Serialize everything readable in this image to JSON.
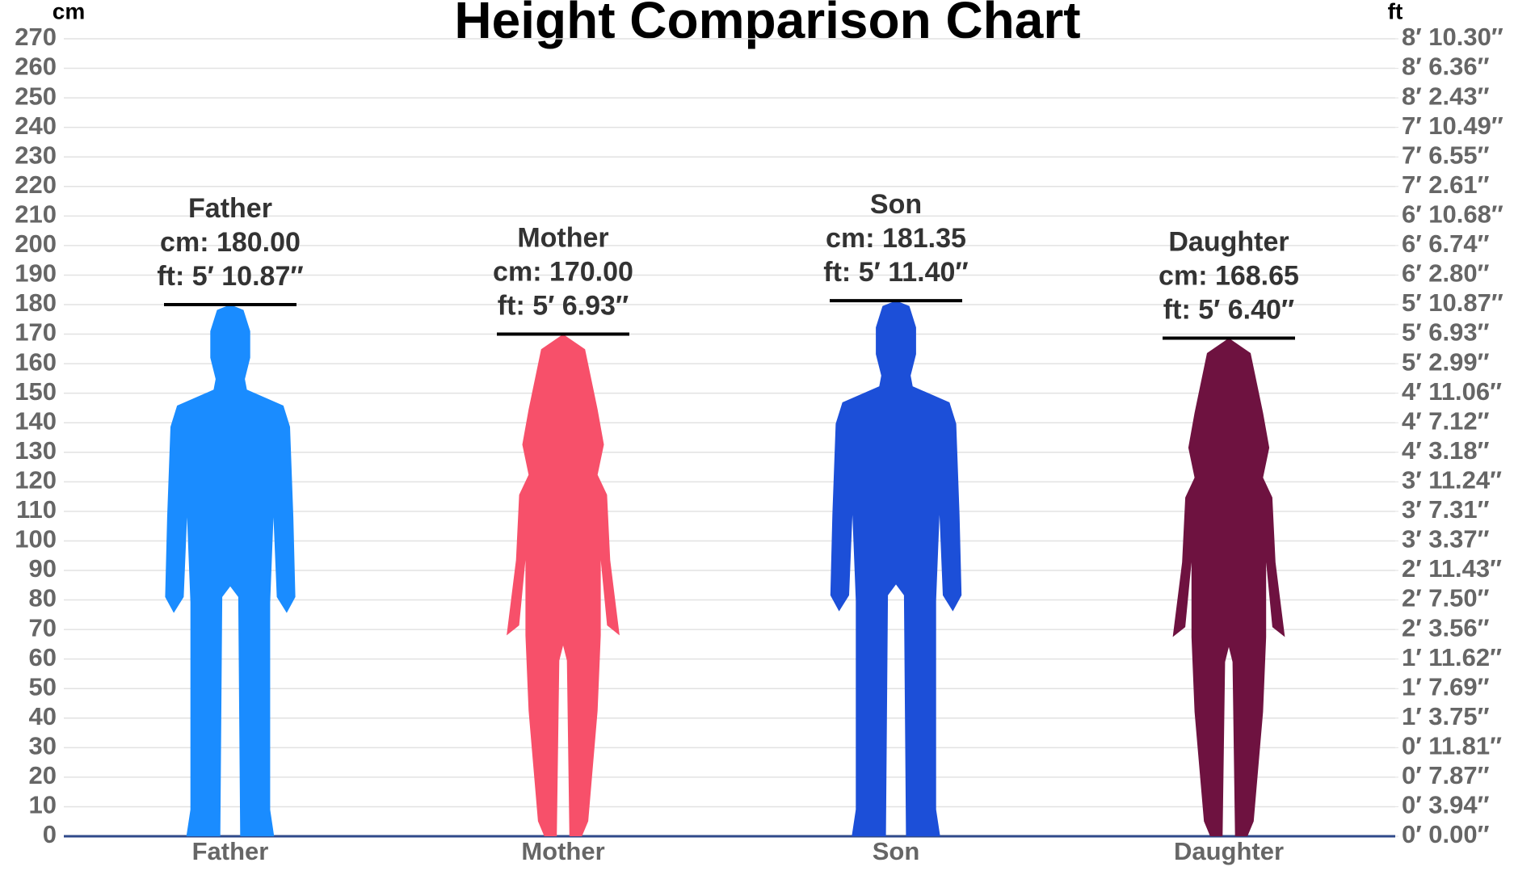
{
  "chart_data": {
    "type": "height-figures",
    "title": "Height Comparison Chart",
    "y_label": "cm",
    "y2_label": "ft",
    "categories": [
      "Father",
      "Mother",
      "Son",
      "Daughter"
    ],
    "values": [
      180,
      170,
      181.35,
      168.65
    ],
    "value_labels": [
      "cm: 180.00",
      "cm: 170.00",
      "cm: 181.35",
      "cm: 168.65"
    ],
    "ft_labels": [
      "ft: 5′ 10.87″",
      "ft: 5′ 6.93″",
      "ft: 5′ 11.40″",
      "ft: 5′ 6.40″"
    ],
    "colors": [
      "#1a8cff",
      "#f7506a",
      "#1c4fd8",
      "#6e1240"
    ],
    "figures": [
      "male",
      "female",
      "male",
      "female"
    ],
    "ylim": [
      0,
      270
    ],
    "yticks": [
      0,
      10,
      20,
      30,
      40,
      50,
      60,
      70,
      80,
      90,
      100,
      110,
      120,
      130,
      140,
      150,
      160,
      170,
      180,
      190,
      200,
      210,
      220,
      230,
      240,
      250,
      260,
      270
    ],
    "y2lim": [
      0,
      8.8583
    ],
    "y2ticks": [
      {
        "value": 0,
        "label": "0′ 0.00″"
      },
      {
        "value": 0.3281,
        "label": "0′ 3.94″"
      },
      {
        "value": 0.6562,
        "label": "0′ 7.87″"
      },
      {
        "value": 0.9843,
        "label": "0′ 11.81″"
      },
      {
        "value": 1.3123,
        "label": "1′ 3.75″"
      },
      {
        "value": 1.6404,
        "label": "1′ 7.69″"
      },
      {
        "value": 1.9685,
        "label": "1′ 11.62″"
      },
      {
        "value": 2.2966,
        "label": "2′ 3.56″"
      },
      {
        "value": 2.6247,
        "label": "2′ 7.50″"
      },
      {
        "value": 2.9528,
        "label": "2′ 11.43″"
      },
      {
        "value": 3.2808,
        "label": "3′ 3.37″"
      },
      {
        "value": 3.6089,
        "label": "3′ 7.31″"
      },
      {
        "value": 3.937,
        "label": "3′ 11.24″"
      },
      {
        "value": 4.2651,
        "label": "4′ 3.18″"
      },
      {
        "value": 4.5932,
        "label": "4′ 7.12″"
      },
      {
        "value": 4.9213,
        "label": "4′ 11.06″"
      },
      {
        "value": 5.2493,
        "label": "5′ 2.99″"
      },
      {
        "value": 5.5774,
        "label": "5′ 6.93″"
      },
      {
        "value": 5.9055,
        "label": "5′ 10.87″"
      },
      {
        "value": 6.2336,
        "label": "6′ 2.80″"
      },
      {
        "value": 6.5617,
        "label": "6′ 6.74″"
      },
      {
        "value": 6.8898,
        "label": "6′ 10.68″"
      },
      {
        "value": 7.2178,
        "label": "7′ 2.61″"
      },
      {
        "value": 7.5459,
        "label": "7′ 6.55″"
      },
      {
        "value": 7.874,
        "label": "7′ 10.49″"
      },
      {
        "value": 8.2021,
        "label": "8′ 2.43″"
      },
      {
        "value": 8.5302,
        "label": "8′ 6.36″"
      },
      {
        "value": 8.8583,
        "label": "8′ 10.30″"
      }
    ],
    "grid": true
  }
}
